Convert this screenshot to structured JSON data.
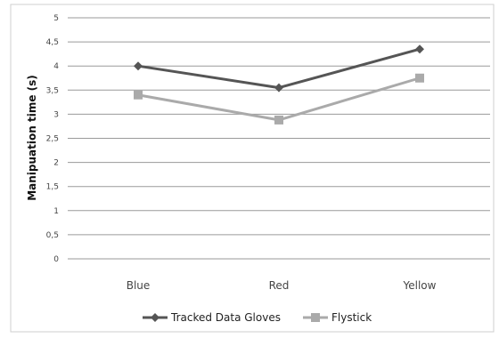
{
  "chart_data": {
    "type": "line",
    "categories": [
      "Blue",
      "Red",
      "Yellow"
    ],
    "series": [
      {
        "name": "Tracked Data Gloves",
        "values": [
          4.0,
          3.55,
          4.35
        ],
        "color": "#555555",
        "marker": "diamond"
      },
      {
        "name": "Flystick",
        "values": [
          3.4,
          2.88,
          3.75
        ],
        "color": "#aaaaaa",
        "marker": "square"
      }
    ],
    "title": "",
    "xlabel": "",
    "ylabel": "Manipuation time (s)",
    "ylim": [
      0,
      5
    ],
    "yticks": [
      "0",
      "0,5",
      "1",
      "1,5",
      "2",
      "2,5",
      "3",
      "3,5",
      "4",
      "4,5",
      "5"
    ],
    "grid": true,
    "legend": "bottom"
  }
}
